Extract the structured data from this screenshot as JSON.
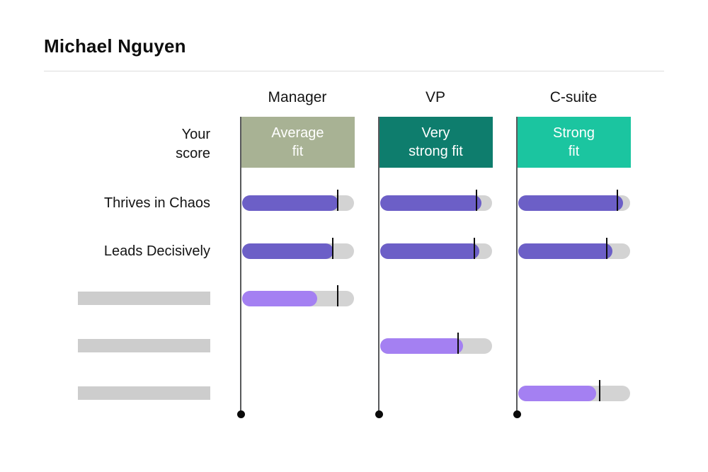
{
  "title": "Michael Nguyen",
  "your_score_label": {
    "line1": "Your",
    "line2": "score"
  },
  "columns": [
    {
      "header": "Manager",
      "fit": {
        "line1": "Average",
        "line2": "fit"
      },
      "badge_color": "#a8b294"
    },
    {
      "header": "VP",
      "fit": {
        "line1": "Very",
        "line2": "strong fit"
      },
      "badge_color": "#0e7d6d"
    },
    {
      "header": "C-suite",
      "fit": {
        "line1": "Strong",
        "line2": "fit"
      },
      "badge_color": "#1bc5a0"
    }
  ],
  "rows": [
    {
      "label": "Thrives in Chaos",
      "redacted": false,
      "bars": [
        {
          "col": 0,
          "fill_pct": 86,
          "tick_pct": 85.5,
          "tone": "dark"
        },
        {
          "col": 1,
          "fill_pct": 90.5,
          "tick_pct": 86,
          "tone": "dark"
        },
        {
          "col": 2,
          "fill_pct": 93.5,
          "tick_pct": 88.5,
          "tone": "dark"
        }
      ]
    },
    {
      "label": "Leads Decisively",
      "redacted": false,
      "bars": [
        {
          "col": 0,
          "fill_pct": 81.5,
          "tick_pct": 81,
          "tone": "dark"
        },
        {
          "col": 1,
          "fill_pct": 88.5,
          "tick_pct": 84,
          "tone": "dark"
        },
        {
          "col": 2,
          "fill_pct": 84,
          "tick_pct": 79,
          "tone": "dark"
        }
      ]
    },
    {
      "label": "",
      "redacted": true,
      "bars": [
        {
          "col": 0,
          "fill_pct": 67,
          "tick_pct": 85.5,
          "tone": "light"
        }
      ]
    },
    {
      "label": "",
      "redacted": true,
      "bars": [
        {
          "col": 1,
          "fill_pct": 74,
          "tick_pct": 69.5,
          "tone": "light"
        }
      ]
    },
    {
      "label": "",
      "redacted": true,
      "bars": [
        {
          "col": 2,
          "fill_pct": 69.5,
          "tick_pct": 73,
          "tone": "light"
        }
      ]
    }
  ],
  "colors": {
    "bar_dark_purple": "#6c5fc7",
    "bar_light_purple": "#a480f2",
    "track_gray": "#d3d3d3",
    "placeholder_gray": "#cdcdcd",
    "axis_line": "#58595b",
    "tick_black": "#0c0c0c",
    "badge_text": "#ffffff"
  },
  "chart_data": {
    "type": "bar",
    "orientation": "horizontal",
    "title": "Michael Nguyen",
    "group_headers": [
      "Manager",
      "VP",
      "C-suite"
    ],
    "fit_summary": [
      "Average fit",
      "Very strong fit",
      "Strong fit"
    ],
    "categories": [
      "Thrives in Chaos",
      "Leads Decisively",
      "",
      "",
      ""
    ],
    "redacted_category_indices": [
      2,
      3,
      4
    ],
    "series": [
      {
        "name": "Manager",
        "score_pct": [
          86,
          81.5,
          67,
          null,
          null
        ],
        "benchmark_pct": [
          85.5,
          81,
          85.5,
          null,
          null
        ]
      },
      {
        "name": "VP",
        "score_pct": [
          90.5,
          88.5,
          null,
          74,
          null
        ],
        "benchmark_pct": [
          86,
          84,
          null,
          69.5,
          null
        ]
      },
      {
        "name": "C-suite",
        "score_pct": [
          93.5,
          84,
          null,
          null,
          69.5
        ],
        "benchmark_pct": [
          88.5,
          79,
          null,
          null,
          73
        ]
      }
    ],
    "xlim": [
      0,
      100
    ],
    "legend": false,
    "notes": "Rounded purple bars = candidate score on gray track; black tick = benchmark marker; rows 3-5 have redacted gray-block labels; dark purple for named traits, light purple for redacted rows."
  }
}
